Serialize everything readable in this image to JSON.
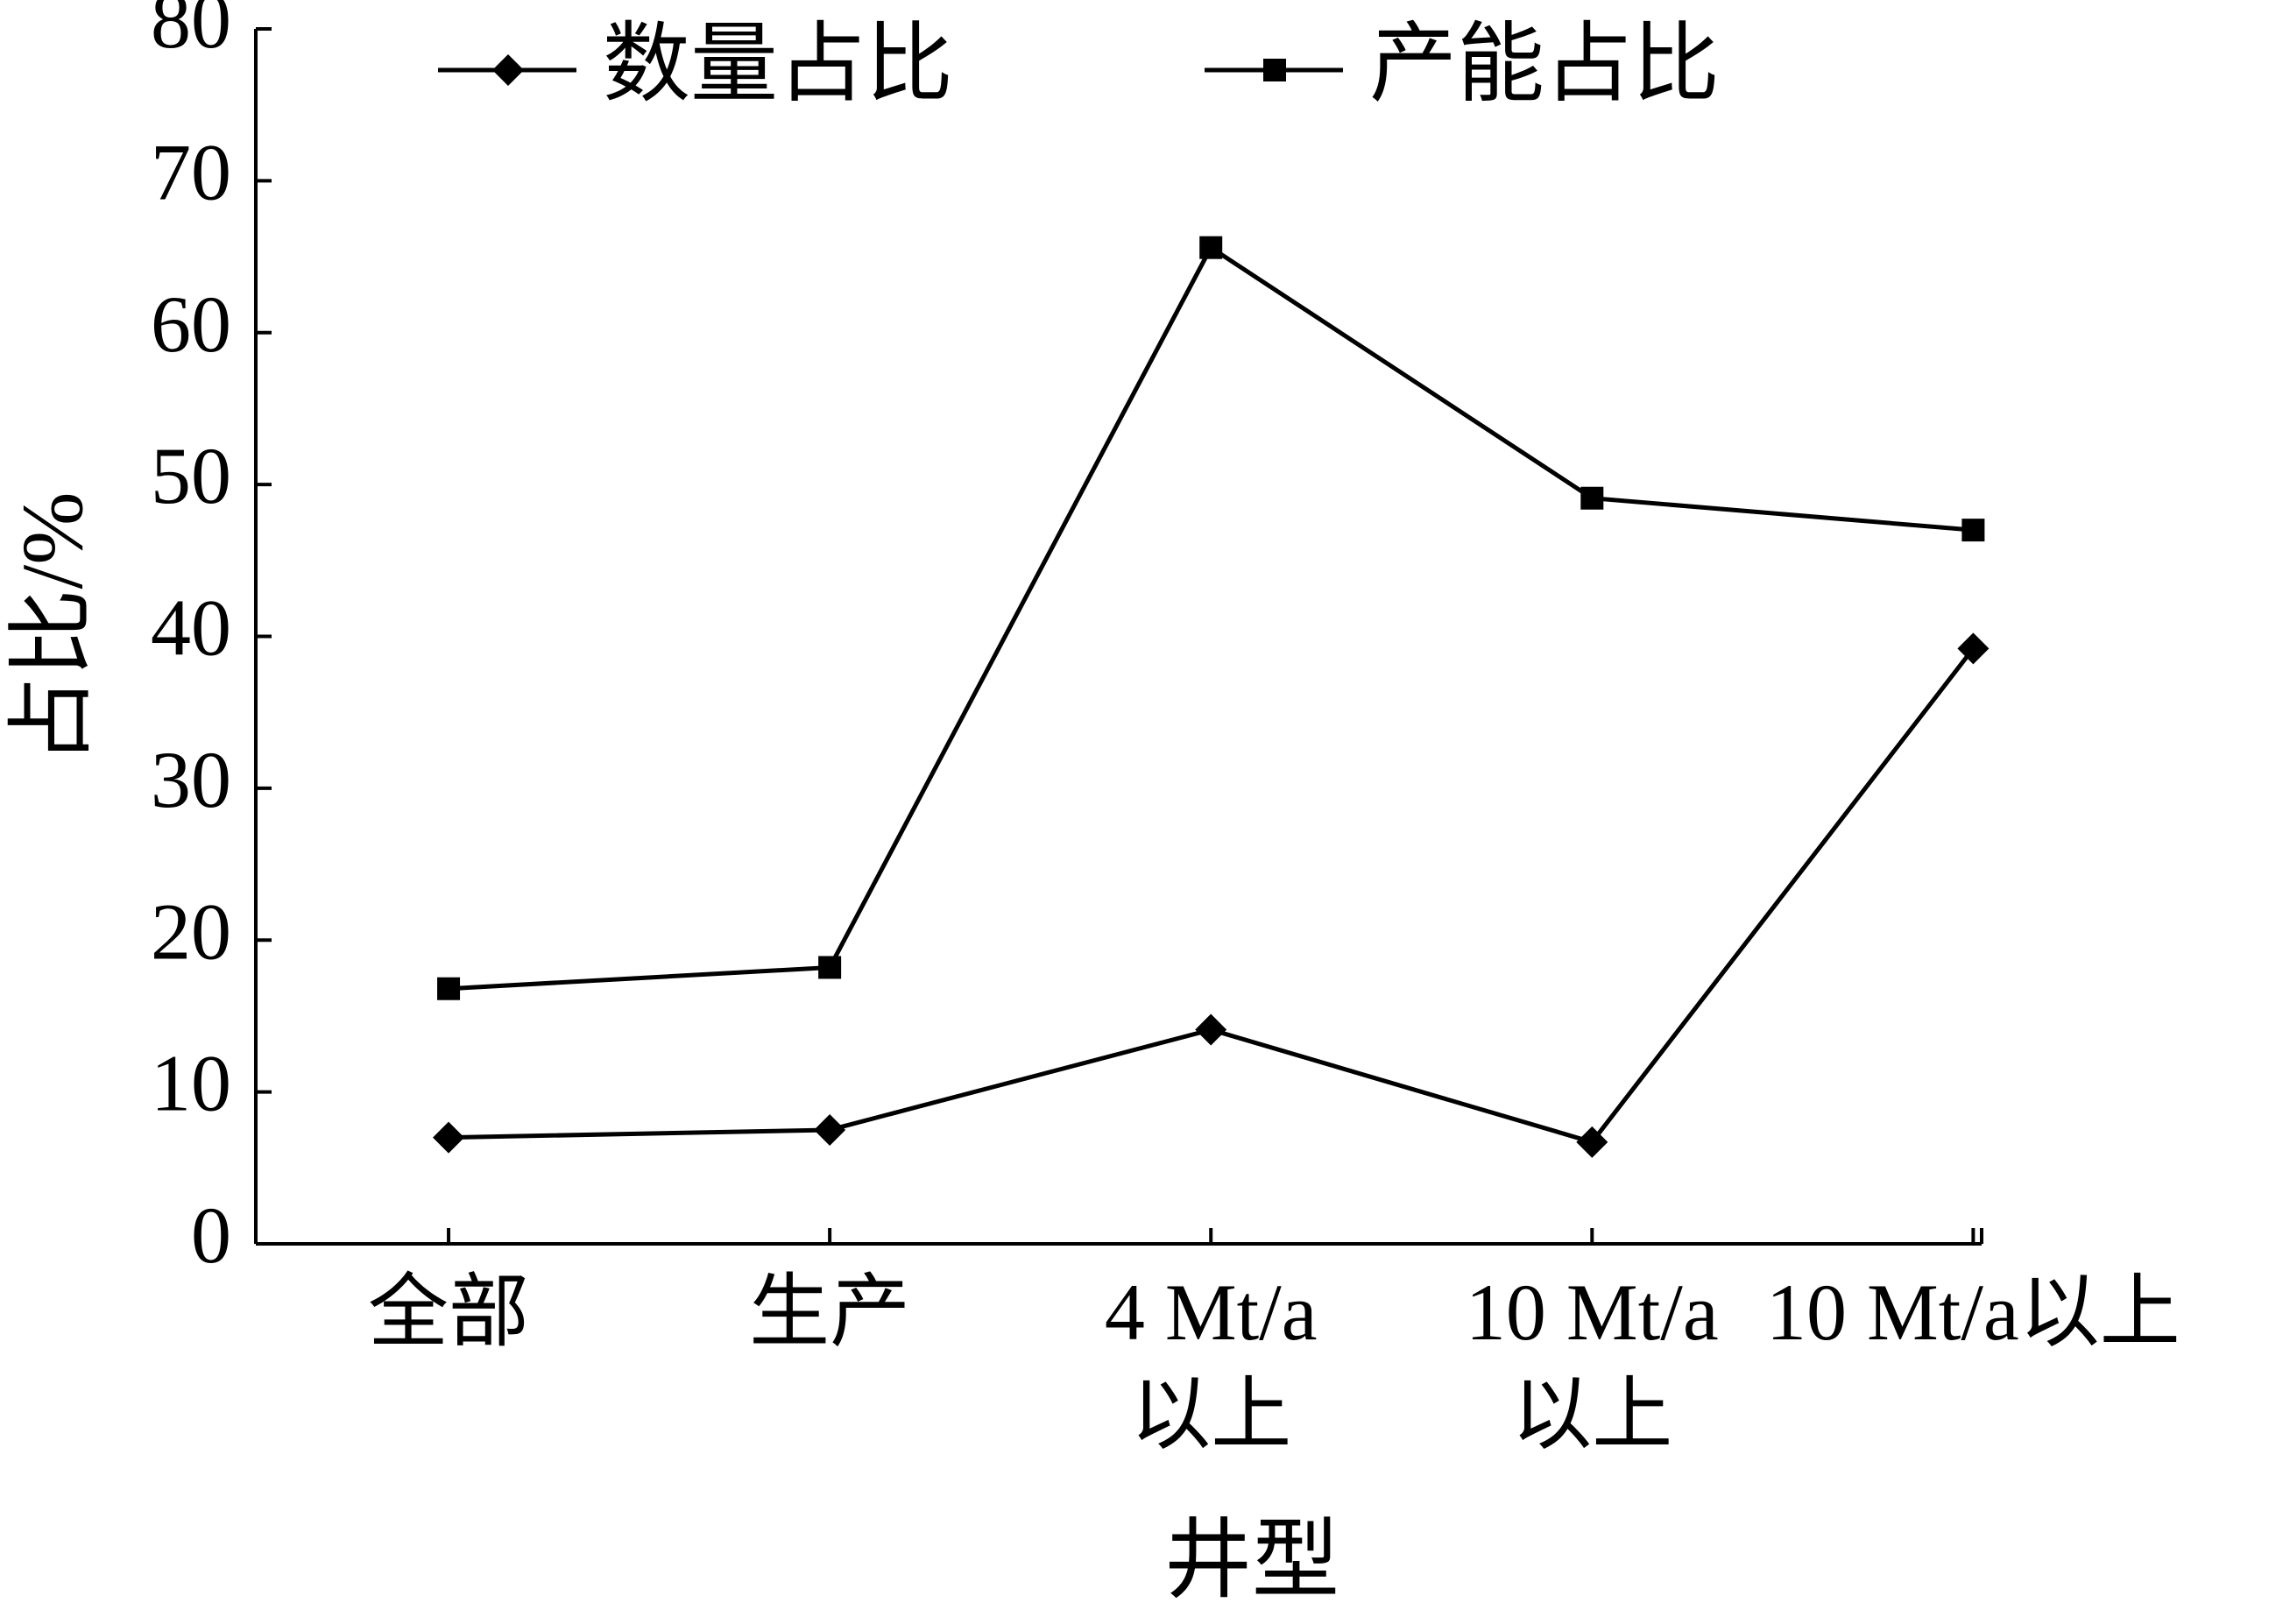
{
  "chart_data": {
    "type": "line",
    "x_label": "井型",
    "y_label": "占比/%",
    "categories": [
      "全部",
      "生产",
      "4 Mt/a\n以上",
      "10 Mt/a\n以上",
      "10 Mt/a以上"
    ],
    "series": [
      {
        "name": "数量占比",
        "color": "#000000",
        "marker": "diamond",
        "values": [
          7.0,
          7.5,
          14.1,
          6.7,
          39.2
        ]
      },
      {
        "name": "产能占比",
        "color": "#000000",
        "marker": "square",
        "values": [
          16.8,
          18.2,
          65.6,
          49.1,
          47.0
        ]
      }
    ],
    "ylim": [
      0,
      80
    ],
    "yticks": [
      0,
      10,
      20,
      30,
      40,
      50,
      60,
      70,
      80
    ],
    "grid": false,
    "legend": "upper center"
  }
}
